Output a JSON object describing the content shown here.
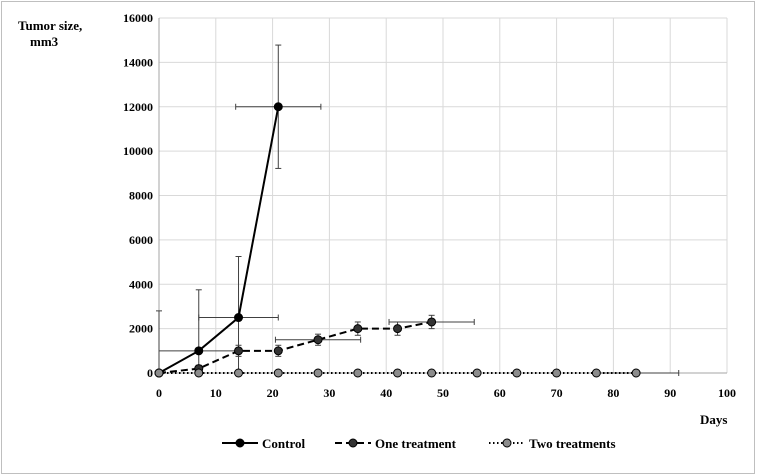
{
  "chart_data": {
    "type": "line",
    "ylabel_line1": "Tumor size,",
    "ylabel_line2": "mm3",
    "xlabel": "Days",
    "xlim": [
      0,
      100
    ],
    "ylim": [
      0,
      16000
    ],
    "xticks": [
      0,
      10,
      20,
      30,
      40,
      50,
      60,
      70,
      80,
      90,
      100
    ],
    "yticks": [
      0,
      2000,
      4000,
      6000,
      8000,
      10000,
      12000,
      14000,
      16000
    ],
    "grid": true,
    "legend_position": "bottom",
    "series": [
      {
        "name": "Control",
        "style": "solid",
        "marker_fill": "#000000",
        "x": [
          0,
          7,
          14,
          21
        ],
        "y": [
          0,
          1000,
          2500,
          12000
        ],
        "y_err": [
          2800,
          2750,
          2750,
          2780
        ],
        "x_err": [
          0,
          7,
          7,
          7.5
        ]
      },
      {
        "name": "One treatment",
        "style": "dashed",
        "marker_fill": "#333333",
        "x": [
          0,
          7,
          14,
          21,
          28,
          35,
          42,
          48
        ],
        "y": [
          0,
          200,
          1000,
          1000,
          1500,
          2000,
          2000,
          2300
        ],
        "y_err": [
          0,
          150,
          250,
          250,
          250,
          300,
          300,
          300
        ],
        "x_err": [
          0,
          0,
          0,
          0,
          7.5,
          0,
          0,
          7.5
        ]
      },
      {
        "name": "Two treatments",
        "style": "dotted",
        "marker_fill": "#8c8c8c",
        "x": [
          0,
          7,
          14,
          21,
          28,
          35,
          42,
          48,
          56,
          63,
          70,
          77,
          84
        ],
        "y": [
          0,
          0,
          0,
          0,
          0,
          0,
          0,
          0,
          0,
          0,
          0,
          0,
          0
        ],
        "y_err": [
          0,
          0,
          0,
          0,
          0,
          0,
          0,
          0,
          0,
          0,
          0,
          0,
          0
        ],
        "x_err": [
          0,
          0,
          0,
          0,
          0,
          0,
          0,
          0,
          0,
          0,
          0,
          0,
          7.5
        ]
      }
    ]
  }
}
